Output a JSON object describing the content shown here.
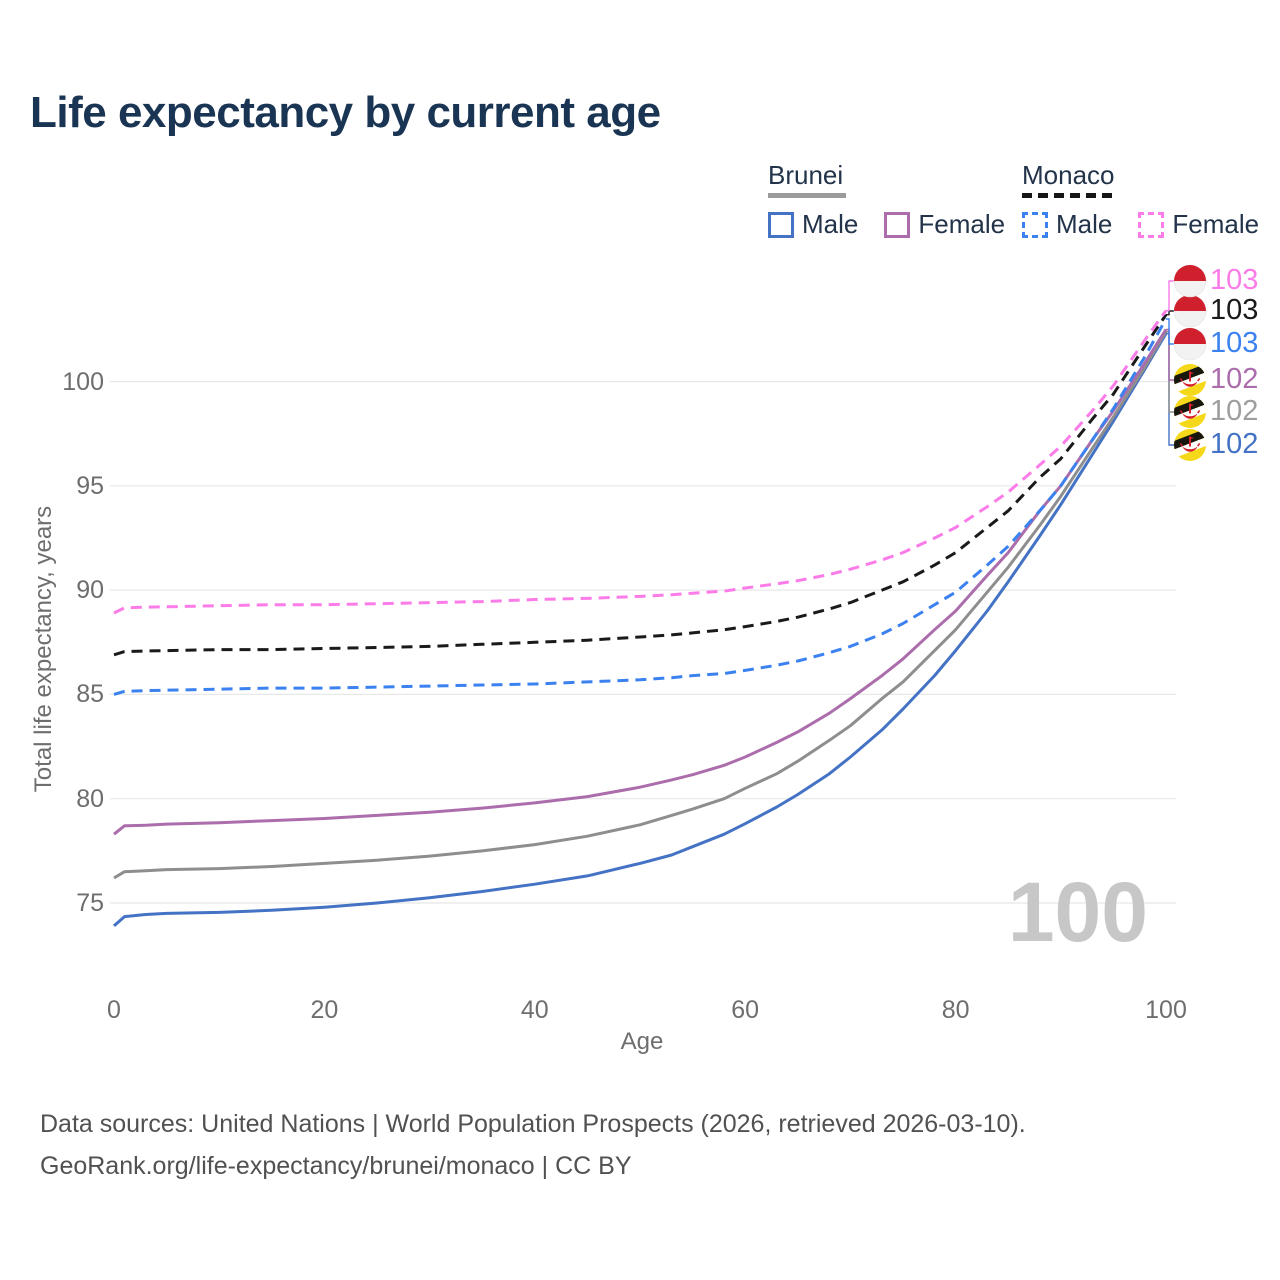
{
  "title": "Life expectancy by current age",
  "legend": {
    "groups": [
      {
        "name": "Brunei",
        "line_style": "solid",
        "underline_color": "#9b9b9b",
        "items": [
          {
            "label": "Male",
            "color": "#4472c4",
            "dashed": false
          },
          {
            "label": "Female",
            "color": "#ab6dab",
            "dashed": false
          }
        ]
      },
      {
        "name": "Monaco",
        "line_style": "dashed",
        "underline_color": "#161616",
        "items": [
          {
            "label": "Male",
            "color": "#3b82f0",
            "dashed": true
          },
          {
            "label": "Female",
            "color": "#fb7ce8",
            "dashed": true
          }
        ]
      }
    ]
  },
  "chart_data": {
    "type": "line",
    "title": "Life expectancy by current age",
    "xlabel": "Age",
    "ylabel": "Total life expectancy, years",
    "x_ticks": [
      0,
      20,
      40,
      60,
      80,
      100
    ],
    "y_ticks": [
      75,
      80,
      85,
      90,
      95,
      100
    ],
    "xlim": [
      0,
      100
    ],
    "ylim": [
      73,
      104
    ],
    "grid": "horizontal",
    "watermark_age": "100",
    "series": [
      {
        "name": "Brunei Male",
        "country": "Brunei",
        "sex": "Male",
        "color": "#4472c4",
        "dashed": false,
        "flag": "brunei",
        "end_label": "102",
        "slot": 5,
        "points": [
          [
            0,
            73.9
          ],
          [
            1,
            74.35
          ],
          [
            3,
            74.45
          ],
          [
            5,
            74.5
          ],
          [
            10,
            74.55
          ],
          [
            15,
            74.65
          ],
          [
            20,
            74.8
          ],
          [
            25,
            75.0
          ],
          [
            30,
            75.25
          ],
          [
            35,
            75.55
          ],
          [
            40,
            75.9
          ],
          [
            45,
            76.3
          ],
          [
            50,
            76.9
          ],
          [
            53,
            77.3
          ],
          [
            55,
            77.7
          ],
          [
            58,
            78.3
          ],
          [
            60,
            78.8
          ],
          [
            63,
            79.6
          ],
          [
            65,
            80.2
          ],
          [
            68,
            81.2
          ],
          [
            70,
            82.0
          ],
          [
            73,
            83.3
          ],
          [
            75,
            84.3
          ],
          [
            78,
            85.9
          ],
          [
            80,
            87.1
          ],
          [
            83,
            89.0
          ],
          [
            85,
            90.4
          ],
          [
            88,
            92.6
          ],
          [
            90,
            94.1
          ],
          [
            93,
            96.5
          ],
          [
            95,
            98.1
          ],
          [
            98,
            100.6
          ],
          [
            100,
            102.3
          ]
        ]
      },
      {
        "name": "Brunei",
        "country": "Brunei",
        "sex": "Both",
        "color": "#8e8e8e",
        "dashed": false,
        "flag": "brunei",
        "end_label": "102",
        "label_color": "#9e9e9e",
        "slot": 4,
        "points": [
          [
            0,
            76.2
          ],
          [
            1,
            76.5
          ],
          [
            3,
            76.55
          ],
          [
            5,
            76.6
          ],
          [
            10,
            76.65
          ],
          [
            15,
            76.75
          ],
          [
            20,
            76.9
          ],
          [
            25,
            77.05
          ],
          [
            30,
            77.25
          ],
          [
            35,
            77.5
          ],
          [
            40,
            77.8
          ],
          [
            45,
            78.2
          ],
          [
            50,
            78.75
          ],
          [
            53,
            79.2
          ],
          [
            55,
            79.5
          ],
          [
            58,
            80.0
          ],
          [
            60,
            80.5
          ],
          [
            63,
            81.2
          ],
          [
            65,
            81.8
          ],
          [
            68,
            82.8
          ],
          [
            70,
            83.5
          ],
          [
            73,
            84.8
          ],
          [
            75,
            85.6
          ],
          [
            78,
            87.1
          ],
          [
            80,
            88.1
          ],
          [
            83,
            89.9
          ],
          [
            85,
            91.1
          ],
          [
            88,
            93.1
          ],
          [
            90,
            94.5
          ],
          [
            93,
            96.8
          ],
          [
            95,
            98.3
          ],
          [
            98,
            100.7
          ],
          [
            100,
            102.4
          ]
        ]
      },
      {
        "name": "Brunei Female",
        "country": "Brunei",
        "sex": "Female",
        "color": "#ab6dab",
        "dashed": false,
        "flag": "brunei",
        "end_label": "102",
        "slot": 3,
        "points": [
          [
            0,
            78.3
          ],
          [
            1,
            78.7
          ],
          [
            3,
            78.73
          ],
          [
            5,
            78.78
          ],
          [
            10,
            78.85
          ],
          [
            15,
            78.95
          ],
          [
            20,
            79.05
          ],
          [
            25,
            79.2
          ],
          [
            30,
            79.35
          ],
          [
            35,
            79.55
          ],
          [
            40,
            79.8
          ],
          [
            45,
            80.1
          ],
          [
            50,
            80.55
          ],
          [
            53,
            80.9
          ],
          [
            55,
            81.15
          ],
          [
            58,
            81.6
          ],
          [
            60,
            82.0
          ],
          [
            63,
            82.7
          ],
          [
            65,
            83.2
          ],
          [
            68,
            84.1
          ],
          [
            70,
            84.8
          ],
          [
            73,
            85.9
          ],
          [
            75,
            86.7
          ],
          [
            78,
            88.1
          ],
          [
            80,
            89.0
          ],
          [
            83,
            90.7
          ],
          [
            85,
            91.8
          ],
          [
            88,
            93.8
          ],
          [
            90,
            95.0
          ],
          [
            93,
            97.2
          ],
          [
            95,
            98.6
          ],
          [
            98,
            100.9
          ],
          [
            100,
            102.5
          ]
        ]
      },
      {
        "name": "Monaco Male",
        "country": "Monaco",
        "sex": "Male",
        "color": "#3b82f0",
        "dashed": true,
        "flag": "monaco",
        "end_label": "103",
        "slot": 2,
        "points": [
          [
            0,
            85.0
          ],
          [
            1,
            85.15
          ],
          [
            3,
            85.18
          ],
          [
            5,
            85.2
          ],
          [
            10,
            85.25
          ],
          [
            15,
            85.3
          ],
          [
            20,
            85.3
          ],
          [
            25,
            85.35
          ],
          [
            30,
            85.4
          ],
          [
            35,
            85.45
          ],
          [
            40,
            85.5
          ],
          [
            45,
            85.6
          ],
          [
            50,
            85.7
          ],
          [
            53,
            85.8
          ],
          [
            55,
            85.9
          ],
          [
            58,
            86.0
          ],
          [
            60,
            86.15
          ],
          [
            63,
            86.4
          ],
          [
            65,
            86.6
          ],
          [
            68,
            87.0
          ],
          [
            70,
            87.3
          ],
          [
            73,
            87.9
          ],
          [
            75,
            88.4
          ],
          [
            78,
            89.3
          ],
          [
            80,
            89.9
          ],
          [
            83,
            91.2
          ],
          [
            85,
            92.1
          ],
          [
            88,
            93.8
          ],
          [
            90,
            95.0
          ],
          [
            93,
            97.2
          ],
          [
            95,
            98.7
          ],
          [
            98,
            101.2
          ],
          [
            100,
            103.0
          ]
        ]
      },
      {
        "name": "Monaco",
        "country": "Monaco",
        "sex": "Both",
        "color": "#1a1a1a",
        "dashed": true,
        "flag": "monaco",
        "end_label": "103",
        "slot": 1,
        "points": [
          [
            0,
            86.9
          ],
          [
            1,
            87.05
          ],
          [
            3,
            87.08
          ],
          [
            5,
            87.1
          ],
          [
            10,
            87.15
          ],
          [
            15,
            87.15
          ],
          [
            20,
            87.2
          ],
          [
            25,
            87.25
          ],
          [
            30,
            87.3
          ],
          [
            35,
            87.4
          ],
          [
            40,
            87.5
          ],
          [
            45,
            87.6
          ],
          [
            50,
            87.75
          ],
          [
            53,
            87.85
          ],
          [
            55,
            87.95
          ],
          [
            58,
            88.1
          ],
          [
            60,
            88.25
          ],
          [
            63,
            88.5
          ],
          [
            65,
            88.7
          ],
          [
            68,
            89.1
          ],
          [
            70,
            89.4
          ],
          [
            73,
            90.0
          ],
          [
            75,
            90.4
          ],
          [
            78,
            91.2
          ],
          [
            80,
            91.8
          ],
          [
            83,
            93.0
          ],
          [
            85,
            93.8
          ],
          [
            88,
            95.4
          ],
          [
            90,
            96.3
          ],
          [
            93,
            98.2
          ],
          [
            95,
            99.4
          ],
          [
            98,
            101.7
          ],
          [
            100,
            103.2
          ]
        ]
      },
      {
        "name": "Monaco Female",
        "country": "Monaco",
        "sex": "Female",
        "color": "#fb7ce8",
        "dashed": true,
        "flag": "monaco",
        "end_label": "103",
        "slot": 0,
        "points": [
          [
            0,
            88.9
          ],
          [
            1,
            89.15
          ],
          [
            3,
            89.18
          ],
          [
            5,
            89.2
          ],
          [
            10,
            89.25
          ],
          [
            15,
            89.3
          ],
          [
            20,
            89.3
          ],
          [
            25,
            89.35
          ],
          [
            30,
            89.4
          ],
          [
            35,
            89.45
          ],
          [
            40,
            89.55
          ],
          [
            45,
            89.6
          ],
          [
            50,
            89.7
          ],
          [
            53,
            89.78
          ],
          [
            55,
            89.85
          ],
          [
            58,
            89.95
          ],
          [
            60,
            90.1
          ],
          [
            63,
            90.3
          ],
          [
            65,
            90.45
          ],
          [
            68,
            90.75
          ],
          [
            70,
            91.0
          ],
          [
            73,
            91.45
          ],
          [
            75,
            91.8
          ],
          [
            78,
            92.5
          ],
          [
            80,
            93.0
          ],
          [
            83,
            94.0
          ],
          [
            85,
            94.7
          ],
          [
            88,
            96.0
          ],
          [
            90,
            96.9
          ],
          [
            93,
            98.6
          ],
          [
            95,
            99.8
          ],
          [
            98,
            102.0
          ],
          [
            100,
            103.4
          ]
        ]
      }
    ]
  },
  "footer": {
    "line1": "Data sources: United Nations | World Population Prospects (2026, retrieved 2026-03-10).",
    "line2": "GeoRank.org/life-expectancy/brunei/monaco | CC BY"
  },
  "colors": {
    "grid": "#e8e8e8",
    "watermark": "#c7c7c7",
    "tick_text": "#6e6e6e",
    "title_text": "#1a3553"
  }
}
